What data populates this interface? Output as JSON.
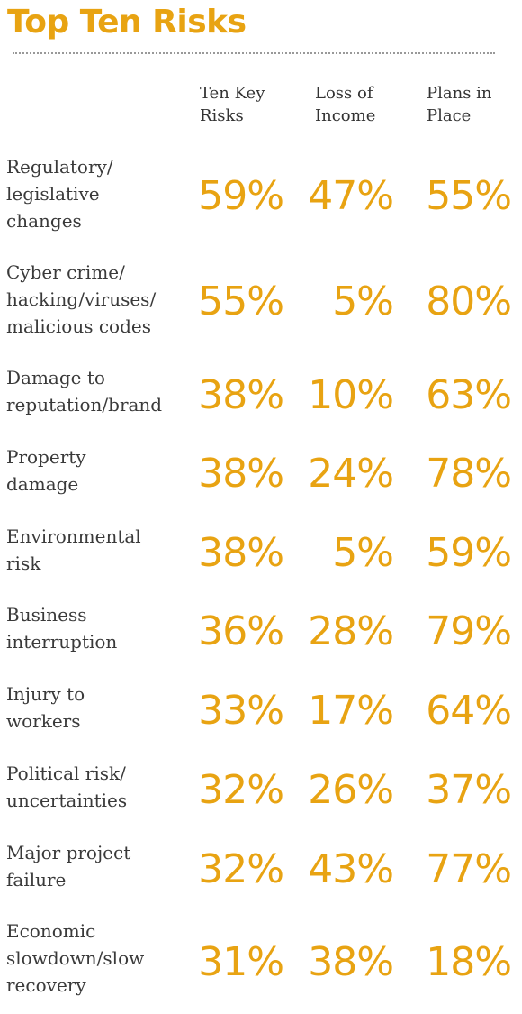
{
  "colors": {
    "accent": "#E8A312",
    "text": "#3a3a3a"
  },
  "chart_data": {
    "type": "table",
    "title": "Top Ten Risks",
    "columns": [
      "Ten Key\nRisks",
      "Loss of\nIncome",
      "Plans in\nPlace"
    ],
    "rows": [
      {
        "label": "Regulatory/\nlegislative\nchanges",
        "values": [
          "59%",
          "47%",
          "55%"
        ]
      },
      {
        "label": "Cyber crime/\nhacking/viruses/\nmalicious codes",
        "values": [
          "55%",
          "5%",
          "80%"
        ]
      },
      {
        "label": "Damage to\nreputation/brand",
        "values": [
          "38%",
          "10%",
          "63%"
        ]
      },
      {
        "label": "Property\ndamage",
        "values": [
          "38%",
          "24%",
          "78%"
        ]
      },
      {
        "label": "Environmental\nrisk",
        "values": [
          "38%",
          "5%",
          "59%"
        ]
      },
      {
        "label": "Business\ninterruption",
        "values": [
          "36%",
          "28%",
          "79%"
        ]
      },
      {
        "label": "Injury to\nworkers",
        "values": [
          "33%",
          "17%",
          "64%"
        ]
      },
      {
        "label": "Political risk/\nuncertainties",
        "values": [
          "32%",
          "26%",
          "37%"
        ]
      },
      {
        "label": "Major project\nfailure",
        "values": [
          "32%",
          "43%",
          "77%"
        ]
      },
      {
        "label": "Economic\nslowdown/slow\nrecovery",
        "values": [
          "31%",
          "38%",
          "18%"
        ]
      }
    ]
  }
}
